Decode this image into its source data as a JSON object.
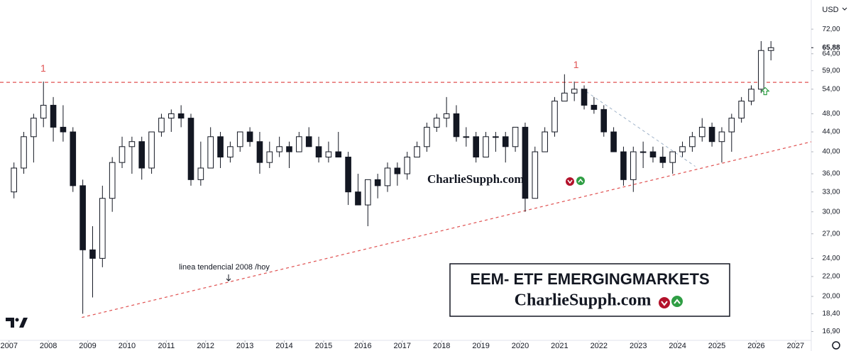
{
  "chart_data": {
    "type": "candlestick",
    "currency": "USD",
    "title": "EEM- ETF EMERGINGMARKETS",
    "box_subtitle": "CharlieSupph.com",
    "watermark": "CharlieSupph.com",
    "trend_label": "linea tendencial 2008 /hoy",
    "log_scale": true,
    "grid": false,
    "up_color": "#ffffff",
    "down_color": "#131722",
    "xlim": [
      2006.77,
      2027.4
    ],
    "xticks": [
      2007,
      2008,
      2009,
      2010,
      2011,
      2012,
      2013,
      2014,
      2015,
      2016,
      2017,
      2018,
      2019,
      2020,
      2021,
      2022,
      2023,
      2024,
      2025,
      2026,
      2027
    ],
    "ylim": [
      16.2,
      82.8
    ],
    "yticks": [
      {
        "value": 16.9,
        "label": "16,90"
      },
      {
        "value": 18.4,
        "label": "18,40"
      },
      {
        "value": 20,
        "label": "20,00"
      },
      {
        "value": 22,
        "label": "22,00"
      },
      {
        "value": 24,
        "label": "24,00"
      },
      {
        "value": 27,
        "label": "27,00"
      },
      {
        "value": 30,
        "label": "30,00"
      },
      {
        "value": 33,
        "label": "33,00"
      },
      {
        "value": 36,
        "label": "36,00"
      },
      {
        "value": 40,
        "label": "40,00"
      },
      {
        "value": 44,
        "label": "44,00"
      },
      {
        "value": 48,
        "label": "48,00"
      },
      {
        "value": 54,
        "label": "54,00"
      },
      {
        "value": 59,
        "label": "59,00"
      },
      {
        "value": 64,
        "label": "64,00"
      },
      {
        "value": 72,
        "label": "72,00"
      }
    ],
    "last_price": {
      "value": 65.88,
      "label": "65,88"
    },
    "resistance": 55.8,
    "resistance_color": "#e05252",
    "trend_line": {
      "x": [
        2008.85,
        2027.4
      ],
      "y": [
        18.08,
        41.97
      ]
    },
    "projection_line": {
      "x": [
        2021.56,
        2024.45
      ],
      "y": [
        54.2,
        37.3
      ]
    },
    "peaks": [
      {
        "label": "1",
        "x": 2007.87,
        "y": 57.5
      },
      {
        "label": "1",
        "x": 2021.42,
        "y": 58.5
      }
    ],
    "buy_signal": {
      "x": 2026.23,
      "y": 53.5
    },
    "x": [
      2007.125,
      2007.375,
      2007.625,
      2007.875,
      2008.125,
      2008.375,
      2008.625,
      2008.875,
      2009.125,
      2009.375,
      2009.625,
      2009.875,
      2010.125,
      2010.375,
      2010.625,
      2010.875,
      2011.125,
      2011.375,
      2011.625,
      2011.875,
      2012.125,
      2012.375,
      2012.625,
      2012.875,
      2013.125,
      2013.375,
      2013.625,
      2013.875,
      2014.125,
      2014.375,
      2014.625,
      2014.875,
      2015.125,
      2015.375,
      2015.625,
      2015.875,
      2016.125,
      2016.375,
      2016.625,
      2016.875,
      2017.125,
      2017.375,
      2017.625,
      2017.875,
      2018.125,
      2018.375,
      2018.625,
      2018.875,
      2019.125,
      2019.375,
      2019.625,
      2019.875,
      2020.125,
      2020.375,
      2020.625,
      2020.875,
      2021.125,
      2021.375,
      2021.625,
      2021.875,
      2022.125,
      2022.375,
      2022.625,
      2022.875,
      2023.125,
      2023.375,
      2023.625,
      2023.875,
      2024.125,
      2024.375,
      2024.625,
      2024.875,
      2025.125,
      2025.375,
      2025.625,
      2025.875,
      2026.125,
      2026.375
    ],
    "open": [
      33,
      37,
      43,
      47,
      50,
      45,
      44,
      34,
      25,
      24,
      32,
      38,
      41,
      42,
      37,
      44,
      47,
      48,
      47,
      35,
      37,
      43,
      39,
      41,
      44,
      42,
      38,
      40,
      41,
      40,
      43,
      41,
      39,
      40,
      39,
      33,
      31,
      35,
      34,
      37,
      36,
      39,
      41,
      45,
      47,
      48,
      43,
      43,
      39,
      43,
      43,
      41,
      45,
      32,
      40,
      44,
      51,
      53,
      54,
      50,
      49,
      44,
      40,
      35,
      40,
      40,
      39,
      38,
      40,
      41,
      43,
      45,
      42,
      44,
      47,
      51,
      54,
      65
    ],
    "high": [
      38,
      44,
      48,
      56,
      52,
      50,
      45,
      35,
      28,
      34,
      39,
      43,
      43,
      43,
      44,
      48,
      49,
      50,
      48,
      42,
      45,
      44,
      42,
      44,
      45,
      44,
      42,
      43,
      42,
      44,
      45,
      43,
      42,
      44,
      40,
      36,
      35,
      36,
      38,
      38,
      40,
      42,
      46,
      48,
      52,
      50,
      45,
      44,
      44,
      44,
      44,
      45,
      46,
      41,
      45,
      52,
      58,
      56,
      55,
      52,
      50,
      45,
      41,
      41,
      42,
      41,
      41,
      40,
      42,
      44,
      47,
      46,
      45,
      48,
      52,
      55,
      68,
      68
    ],
    "low": [
      32,
      36,
      38,
      45,
      42,
      42,
      33,
      18.4,
      19.9,
      23,
      30,
      37,
      36,
      35,
      36,
      43,
      44,
      45,
      34,
      34,
      37,
      37,
      38,
      40,
      41,
      36,
      37,
      39,
      37,
      40,
      41,
      38,
      38,
      39,
      31,
      31,
      28,
      32,
      33,
      34,
      35,
      39,
      40,
      44,
      45,
      42,
      41,
      38,
      39,
      40,
      38,
      40,
      30,
      32,
      40,
      43,
      51,
      51,
      49,
      48,
      43,
      40,
      34,
      33,
      37,
      38,
      37,
      36,
      39,
      40,
      42,
      41,
      38,
      40,
      46,
      50,
      53,
      62
    ],
    "close": [
      37,
      43,
      47,
      50,
      45,
      44,
      34,
      25,
      24,
      32,
      38,
      41,
      42,
      37,
      44,
      47,
      48,
      47,
      35,
      37,
      43,
      39,
      41,
      44,
      42,
      38,
      40,
      41,
      40,
      43,
      41,
      39,
      40,
      39,
      33,
      31,
      35,
      34,
      37,
      36,
      39,
      41,
      45,
      47,
      48,
      43,
      43,
      39,
      43,
      43,
      41,
      45,
      32,
      40,
      44,
      51,
      53,
      54,
      50,
      49,
      44,
      40,
      35,
      40,
      40,
      39,
      38,
      40,
      41,
      43,
      45,
      42,
      44,
      47,
      51,
      54,
      65,
      65.88
    ]
  }
}
